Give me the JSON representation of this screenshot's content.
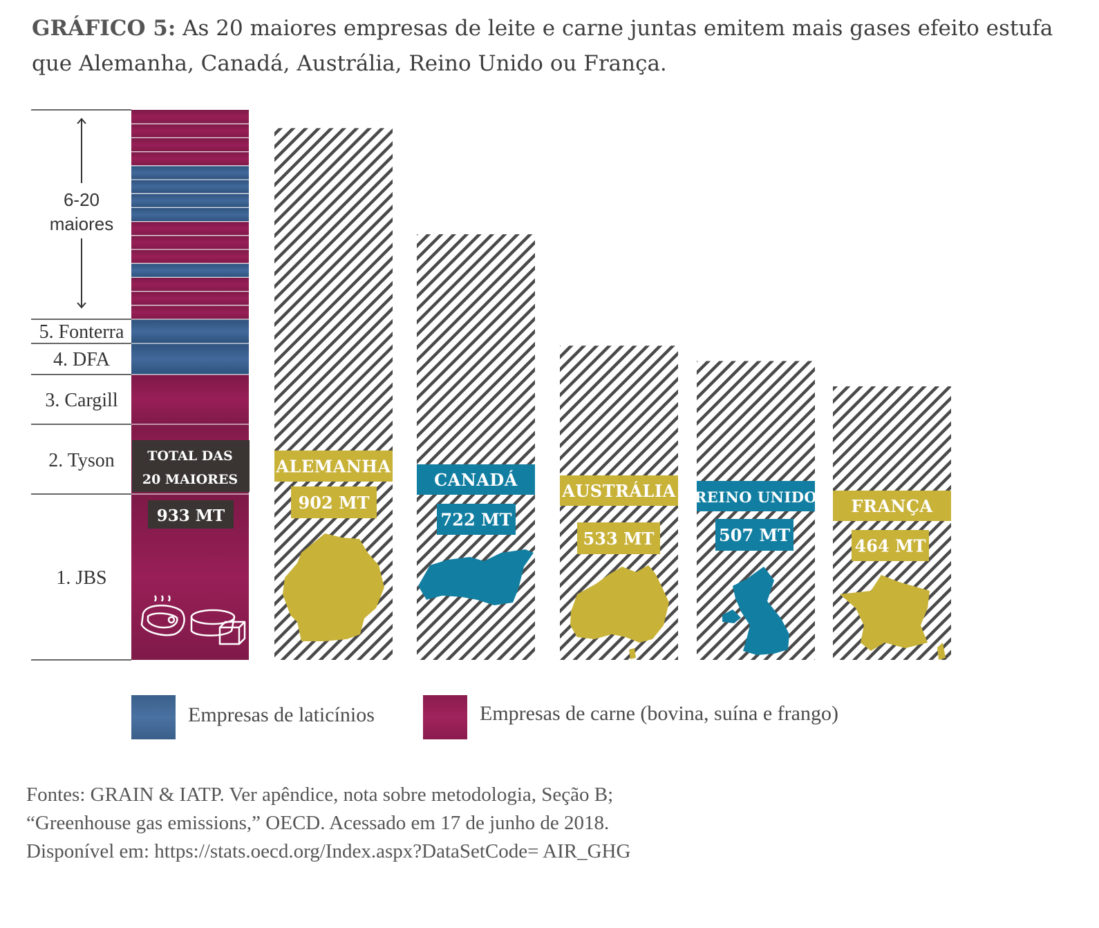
{
  "title": {
    "prefix": "GRÁFICO 5:",
    "text": "As 20 maiores empresas de leite e carne juntas emitem mais gases efeito estufa que Alemanha, Canadá, Austrália, Reino Unido ou França."
  },
  "colors": {
    "dairy": "#3a5f8a",
    "meat": "#8a1c4e",
    "gold": "#c8b238",
    "teal": "#127fa2",
    "dark_label": "#3a3533",
    "hatch": "#444444"
  },
  "icons": [
    "steak-icon",
    "cheese-icon"
  ],
  "chart_data": {
    "type": "bar",
    "stack": {
      "total_label": "Total das 20 maiores",
      "value_label": "933 MT",
      "value": 933,
      "range_label": "6-20 maiores",
      "companies": [
        {
          "label": "1. JBS",
          "type": "carne"
        },
        {
          "label": "2. Tyson",
          "type": "carne"
        },
        {
          "label": "3. Cargill",
          "type": "carne"
        },
        {
          "label": "4. DFA",
          "type": "laticinios"
        },
        {
          "label": "5. Fonterra",
          "type": "laticinios"
        }
      ],
      "segments_6_20": [
        "carne",
        "carne",
        "carne",
        "laticinios",
        "carne",
        "carne",
        "carne",
        "laticinios",
        "laticinios",
        "laticinios",
        "laticinios",
        "carne",
        "carne",
        "carne",
        "carne"
      ]
    },
    "categories": [
      "Alemanha",
      "Canadá",
      "Austrália",
      "Reino Unido",
      "França"
    ],
    "values": [
      902,
      722,
      533,
      507,
      464
    ],
    "value_labels": [
      "902 MT",
      "722 MT",
      "533 MT",
      "507 MT",
      "464 MT"
    ],
    "label_colors": [
      "gold",
      "teal",
      "gold",
      "teal",
      "gold"
    ],
    "unit": "MT",
    "ylim": [
      0,
      933
    ]
  },
  "legend": [
    {
      "label": "Empresas de laticínios",
      "type": "laticinios"
    },
    {
      "label": "Empresas de carne (bovina, suína e frango)",
      "type": "carne"
    }
  ],
  "sources": [
    "Fontes: GRAIN & IATP. Ver apêndice, nota sobre metodologia, Seção B;",
    "“Greenhouse gas emissions,” OECD. Acessado em 17 de junho de 2018.",
    "Disponível em: https://stats.oecd.org/Index.aspx?DataSetCode= AIR_GHG"
  ]
}
